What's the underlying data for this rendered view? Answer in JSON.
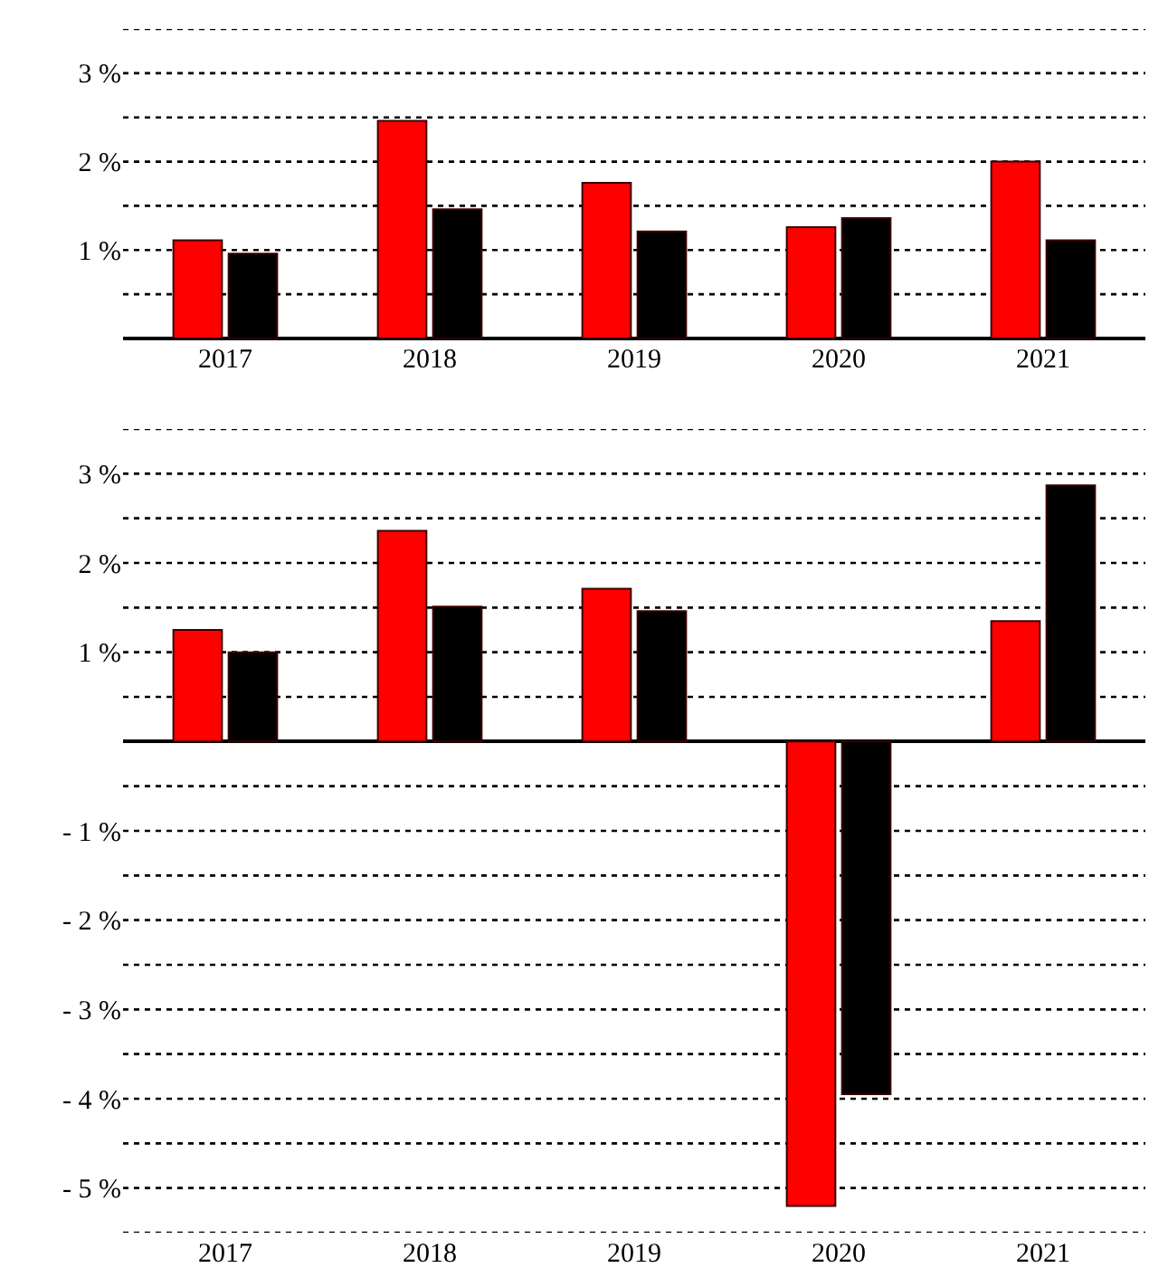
{
  "chart_data": [
    {
      "type": "bar",
      "categories": [
        "2017",
        "2018",
        "2019",
        "2020",
        "2021"
      ],
      "series": [
        {
          "color": "#ff0000",
          "values": [
            1.11,
            2.46,
            1.76,
            1.26,
            2.0
          ]
        },
        {
          "color": "#000000",
          "values": [
            0.96,
            1.46,
            1.21,
            1.36,
            1.11
          ]
        }
      ],
      "ylim": [
        0,
        3.5
      ],
      "yticks": [
        {
          "value": 0.5,
          "label": null
        },
        {
          "value": 1,
          "label": "1 %"
        },
        {
          "value": 1.5,
          "label": null
        },
        {
          "value": 2,
          "label": "2 %"
        },
        {
          "value": 2.5,
          "label": null
        },
        {
          "value": 3,
          "label": "3 %"
        },
        {
          "value": 3.5,
          "label": null
        }
      ],
      "grid": "y"
    },
    {
      "type": "bar",
      "categories": [
        "2017",
        "2018",
        "2019",
        "2020",
        "2021"
      ],
      "series": [
        {
          "color": "#ff0000",
          "values": [
            1.25,
            2.36,
            1.71,
            -5.2,
            1.35
          ]
        },
        {
          "color": "#000000",
          "values": [
            1.0,
            1.51,
            1.46,
            -3.95,
            2.87
          ]
        }
      ],
      "ylim": [
        -5.5,
        3.5
      ],
      "yticks": [
        {
          "value": -5.5,
          "label": null
        },
        {
          "value": -5,
          "label": "- 5 %"
        },
        {
          "value": -4.5,
          "label": null
        },
        {
          "value": -4,
          "label": "- 4 %"
        },
        {
          "value": -3.5,
          "label": null
        },
        {
          "value": -3,
          "label": "- 3 %"
        },
        {
          "value": -2.5,
          "label": null
        },
        {
          "value": -2,
          "label": "- 2 %"
        },
        {
          "value": -1.5,
          "label": null
        },
        {
          "value": -1,
          "label": "- 1 %"
        },
        {
          "value": -0.5,
          "label": null
        },
        {
          "value": 0.5,
          "label": null
        },
        {
          "value": 1,
          "label": "1 %"
        },
        {
          "value": 1.5,
          "label": null
        },
        {
          "value": 2,
          "label": "2 %"
        },
        {
          "value": 2.5,
          "label": null
        },
        {
          "value": 3,
          "label": "3 %"
        },
        {
          "value": 3.5,
          "label": null
        }
      ],
      "grid": "y"
    }
  ]
}
